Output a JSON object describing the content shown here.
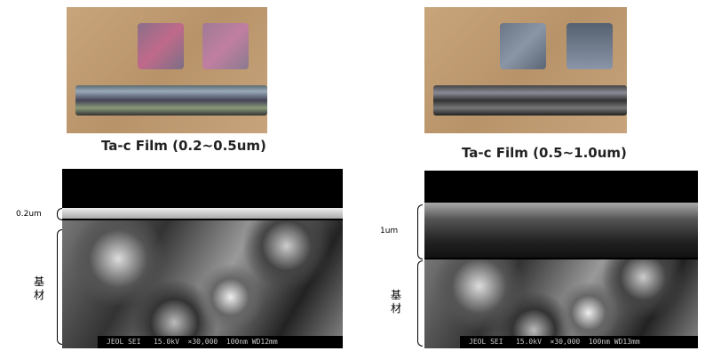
{
  "panels": [
    {
      "caption": "Ta-c Film (0.2~0.5um)",
      "film_label": "0.2um",
      "substrate_label": "基\n材",
      "sem_info": "JEOL SEI   15.0kV  ×30,000  100nm WD12mm"
    },
    {
      "caption": "Ta-c Film (0.5~1.0um)",
      "film_label": "1um",
      "substrate_label": "基\n材",
      "sem_info": "JEOL SEI   15.0kV  ×30,000  100nm WD13mm"
    }
  ]
}
